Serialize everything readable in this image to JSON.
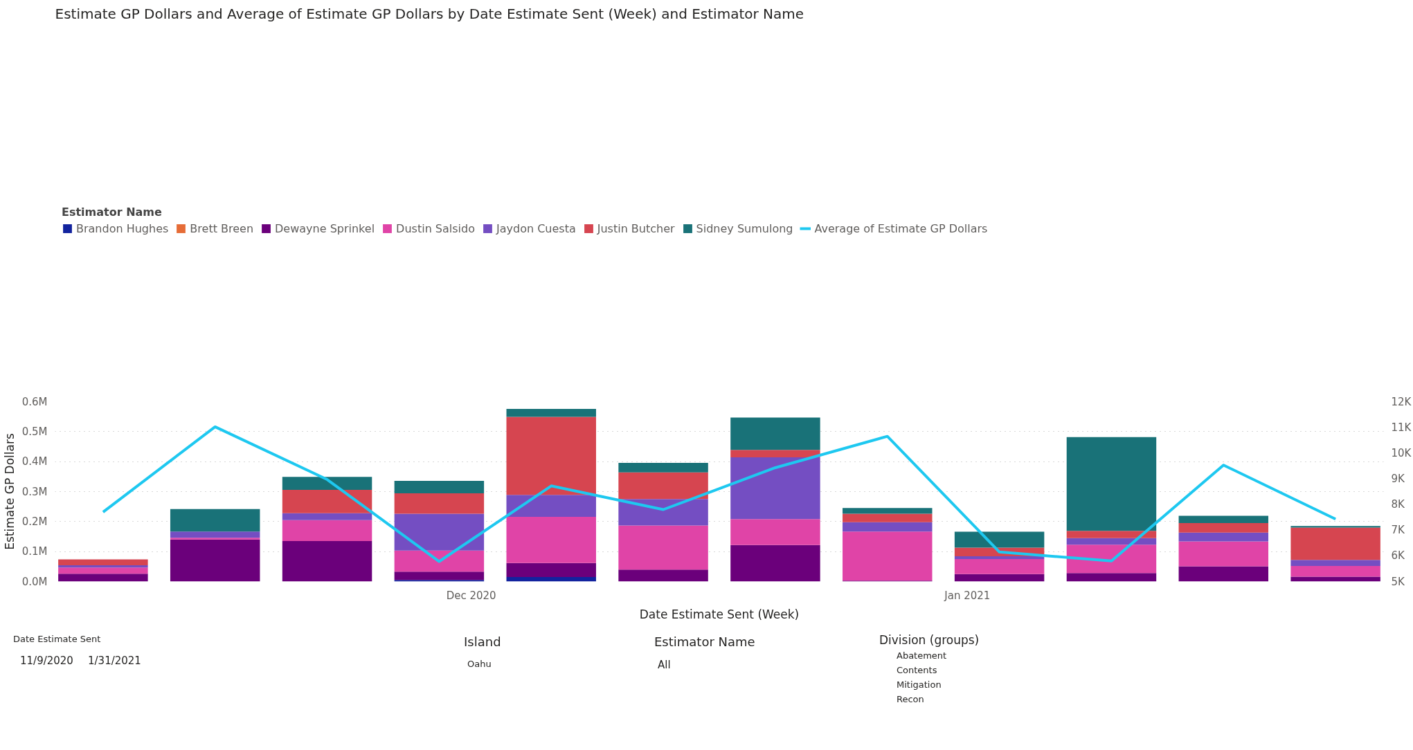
{
  "chart_data": {
    "type": "bar",
    "title": "Estimate GP Dollars and Average of Estimate GP Dollars by Date Estimate Sent (Week) and Estimator Name",
    "xlabel": "Date Estimate Sent (Week)",
    "ylabel": "Estimate GP Dollars",
    "legend_title": "Estimator Name",
    "stacked": true,
    "grid": "y",
    "legend": "top left",
    "x": [
      "2020-11-08",
      "2020-11-15",
      "2020-11-22",
      "2020-11-29",
      "2020-12-06",
      "2020-12-13",
      "2020-12-20",
      "2020-12-27",
      "2021-01-03",
      "2021-01-10",
      "2021-01-17",
      "2021-01-24"
    ],
    "xlim": [
      "2020-11-05",
      "2021-01-27"
    ],
    "xticks": [
      {
        "value": "2020-12-01",
        "label": "Dec 2020"
      },
      {
        "value": "2021-01-01",
        "label": "Jan 2021"
      }
    ],
    "ylim": [
      0,
      600000
    ],
    "yticks": [
      {
        "value": 0,
        "label": "0.0M"
      },
      {
        "value": 100000,
        "label": "0.1M"
      },
      {
        "value": 200000,
        "label": "0.2M"
      },
      {
        "value": 300000,
        "label": "0.3M"
      },
      {
        "value": 400000,
        "label": "0.4M"
      },
      {
        "value": 500000,
        "label": "0.5M"
      },
      {
        "value": 600000,
        "label": "0.6M"
      }
    ],
    "y2lim": [
      5000,
      12000
    ],
    "y2ticks": [
      {
        "value": 5000,
        "label": "5K"
      },
      {
        "value": 6000,
        "label": "6K"
      },
      {
        "value": 7000,
        "label": "7K"
      },
      {
        "value": 8000,
        "label": "8K"
      },
      {
        "value": 9000,
        "label": "9K"
      },
      {
        "value": 10000,
        "label": "10K"
      },
      {
        "value": 11000,
        "label": "11K"
      },
      {
        "value": 12000,
        "label": "12K"
      }
    ],
    "series": [
      {
        "name": "Brandon Hughes",
        "color": "#12239e",
        "values": [
          null,
          0,
          0,
          5000,
          15000,
          null,
          0,
          0,
          0,
          0,
          0,
          0
        ]
      },
      {
        "name": "Brett Breen",
        "color": "#e66c37",
        "values": [
          0,
          0,
          0,
          0,
          0,
          0,
          0,
          0,
          0,
          0,
          0,
          0
        ]
      },
      {
        "name": "Dewayne Sprinkel",
        "color": "#6b007b",
        "values": [
          26000,
          140000,
          135000,
          28000,
          47000,
          40000,
          122000,
          3000,
          25000,
          28000,
          51000,
          16000
        ]
      },
      {
        "name": "Dustin Salsido",
        "color": "#e044a7",
        "values": [
          21000,
          6000,
          70000,
          70000,
          154000,
          147000,
          86000,
          164000,
          50000,
          95000,
          83000,
          36000
        ]
      },
      {
        "name": "Jaydon Cuesta",
        "color": "#744ec2",
        "values": [
          7000,
          21000,
          23000,
          123000,
          73000,
          88000,
          206000,
          31000,
          9000,
          22000,
          29000,
          20000
        ]
      },
      {
        "name": "Justin Butcher",
        "color": "#d64550",
        "values": [
          20000,
          0,
          78000,
          68000,
          260000,
          89000,
          25000,
          28000,
          29000,
          24000,
          32000,
          108000
        ]
      },
      {
        "name": "Sidney Sumulong",
        "color": "#197278",
        "values": [
          0,
          75000,
          43000,
          42000,
          27000,
          32000,
          108000,
          19000,
          53000,
          313000,
          24000,
          5000
        ]
      },
      {
        "name": "Average of Estimate GP Dollars",
        "color": "#1ec8f0",
        "type": "line",
        "axis": "y2",
        "line_style": "solid",
        "marker": "none",
        "values": [
          7700,
          11020,
          8970,
          5780,
          8720,
          7800,
          9430,
          10650,
          6150,
          5800,
          9530,
          7430
        ]
      }
    ],
    "annotations": [
      "Date Estimate Sent",
      "11/9/2020",
      "1/31/2021",
      "Island",
      "Oahu",
      "Estimator Name",
      "All",
      "Division (groups)",
      "Abatement",
      "Contents",
      "Mitigation",
      "Recon"
    ]
  }
}
